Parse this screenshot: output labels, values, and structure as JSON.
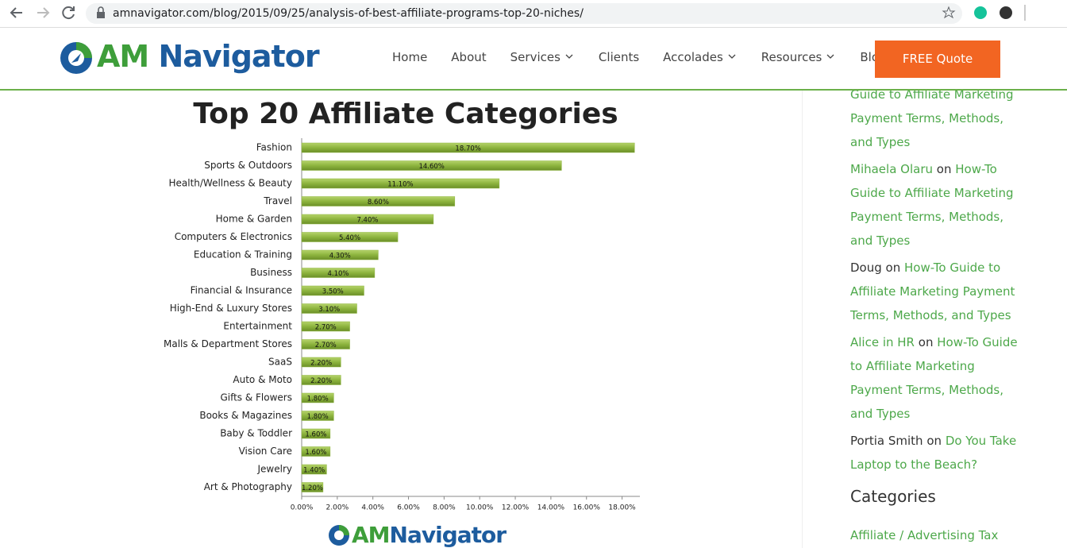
{
  "browser": {
    "url": "amnavigator.com/blog/2015/09/25/analysis-of-best-affiliate-programs-top-20-niches/"
  },
  "header": {
    "logo_prefix": "AM",
    "logo_name": "Navigator",
    "nav": [
      {
        "label": "Home"
      },
      {
        "label": "About"
      },
      {
        "label": "Services",
        "dropdown": true
      },
      {
        "label": "Clients"
      },
      {
        "label": "Accolades",
        "dropdown": true
      },
      {
        "label": "Resources",
        "dropdown": true
      },
      {
        "label": "Blog"
      }
    ],
    "cta": "FREE Quote"
  },
  "chart_data": {
    "type": "bar",
    "orientation": "horizontal",
    "title": "Top 20 Affiliate Categories",
    "categories": [
      "Fashion",
      "Sports & Outdoors",
      "Health/Wellness & Beauty",
      "Travel",
      "Home & Garden",
      "Computers & Electronics",
      "Education & Training",
      "Business",
      "Financial & Insurance",
      "High-End & Luxury Stores",
      "Entertainment",
      "Malls & Department Stores",
      "SaaS",
      "Auto & Moto",
      "Gifts & Flowers",
      "Books & Magazines",
      "Baby & Toddler",
      "Vision Care",
      "Jewelry",
      "Art & Photography"
    ],
    "values": [
      18.7,
      14.6,
      11.1,
      8.6,
      7.4,
      5.4,
      4.3,
      4.1,
      3.5,
      3.1,
      2.7,
      2.7,
      2.2,
      2.2,
      1.8,
      1.8,
      1.6,
      1.6,
      1.4,
      1.2
    ],
    "value_labels": [
      "18.70%",
      "14.60%",
      "11.10%",
      "8.60%",
      "7.40%",
      "5.40%",
      "4.30%",
      "4.10%",
      "3.50%",
      "3.10%",
      "2.70%",
      "2.70%",
      "2.20%",
      "2.20%",
      "1.80%",
      "1.80%",
      "1.60%",
      "1.60%",
      "1.40%",
      "1.20%"
    ],
    "color": "#8db43e",
    "xlim": [
      0,
      19
    ],
    "xticks": [
      {
        "value": 0,
        "label": "0.00%"
      },
      {
        "value": 2,
        "label": "2.00%"
      },
      {
        "value": 4,
        "label": "4.00%"
      },
      {
        "value": 6,
        "label": "6.00%"
      },
      {
        "value": 8,
        "label": "8.00%"
      },
      {
        "value": 10,
        "label": "10.00%"
      },
      {
        "value": 12,
        "label": "12.00%"
      },
      {
        "value": 14,
        "label": "14.00%"
      },
      {
        "value": 16,
        "label": "16.00%"
      },
      {
        "value": 18,
        "label": "18.00%"
      }
    ]
  },
  "sidebar": {
    "comments": [
      {
        "link": "Guide to Affiliate Marketing Payment Terms, Methods, and Types"
      },
      {
        "author": "Mihaela Olaru",
        "sep": "on",
        "link": "How-To Guide to Affiliate Marketing Payment Terms, Methods, and Types",
        "author_link": true
      },
      {
        "author": "Doug",
        "sep": "on",
        "link": "How-To Guide to Affiliate Marketing Payment Terms, Methods, and Types"
      },
      {
        "author": "Alice in HR",
        "sep": "on",
        "link": "How-To Guide to Affiliate Marketing Payment Terms, Methods, and Types",
        "author_link": true
      },
      {
        "author": "Portia Smith",
        "sep": "on",
        "link": "Do You Take Laptop to the Beach?"
      }
    ],
    "categories_title": "Categories",
    "categories": [
      "Affiliate / Advertising Tax"
    ]
  }
}
